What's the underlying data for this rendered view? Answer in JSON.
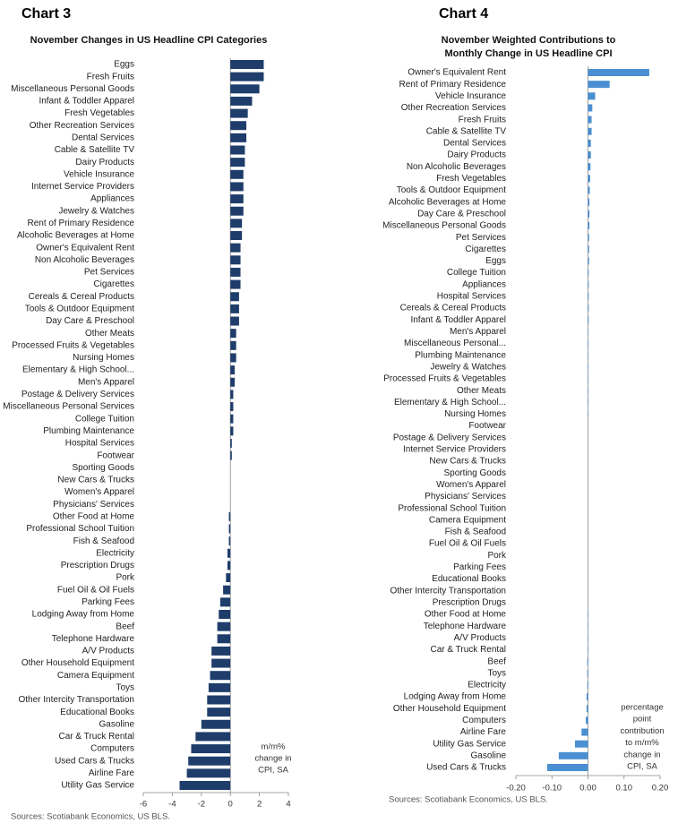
{
  "chart_data": [
    {
      "type": "bar",
      "orientation": "horizontal",
      "label": "Chart 3",
      "title": "November Changes in US Headline CPI Categories",
      "categories": [
        "Eggs",
        "Fresh Fruits",
        "Miscellaneous Personal Goods",
        "Infant & Toddler Apparel",
        "Fresh Vegetables",
        "Other Recreation Services",
        "Dental Services",
        "Cable & Satellite TV",
        "Dairy Products",
        "Vehicle Insurance",
        "Internet Service Providers",
        "Appliances",
        "Jewelry & Watches",
        "Rent of Primary Residence",
        "Alcoholic Beverages at Home",
        "Owner's Equivalent Rent",
        "Non Alcoholic Beverages",
        "Pet Services",
        "Cigarettes",
        "Cereals & Cereal Products",
        "Tools & Outdoor Equipment",
        "Day Care & Preschool",
        "Other Meats",
        "Processed Fruits & Vegetables",
        "Nursing Homes",
        "Elementary & High School...",
        "Men's Apparel",
        "Postage & Delivery Services",
        "Miscellaneous Personal Services",
        "College Tuition",
        "Plumbing Maintenance",
        "Hospital Services",
        "Footwear",
        "Sporting Goods",
        "New Cars & Trucks",
        "Women's Apparel",
        "Physicians' Services",
        "Other Food at Home",
        "Professional School Tuition",
        "Fish & Seafood",
        "Electricity",
        "Prescription Drugs",
        "Pork",
        "Fuel Oil & Oil Fuels",
        "Parking Fees",
        "Lodging Away from Home",
        "Beef",
        "Telephone Hardware",
        "A/V Products",
        "Other Household Equipment",
        "Camera Equipment",
        "Toys",
        "Other Intercity Transportation",
        "Educational Books",
        "Gasoline",
        "Car & Truck Rental",
        "Computers",
        "Used Cars & Trucks",
        "Airline Fare",
        "Utility Gas Service"
      ],
      "values": [
        2.3,
        2.3,
        2.0,
        1.5,
        1.2,
        1.1,
        1.1,
        1.0,
        1.0,
        0.9,
        0.9,
        0.9,
        0.9,
        0.8,
        0.8,
        0.7,
        0.7,
        0.7,
        0.7,
        0.6,
        0.6,
        0.6,
        0.4,
        0.4,
        0.4,
        0.3,
        0.3,
        0.2,
        0.2,
        0.2,
        0.2,
        0.1,
        0.1,
        0.0,
        0.0,
        0.0,
        0.0,
        -0.1,
        -0.1,
        -0.1,
        -0.2,
        -0.2,
        -0.3,
        -0.5,
        -0.7,
        -0.8,
        -0.9,
        -0.9,
        -1.3,
        -1.3,
        -1.4,
        -1.5,
        -1.6,
        -1.6,
        -2.0,
        -2.4,
        -2.7,
        -2.9,
        -3.0,
        -3.5
      ],
      "color": "#1f3d6b",
      "xlim": [
        -6,
        4
      ],
      "xticks": [
        -6,
        -4,
        -2,
        0,
        2,
        4
      ],
      "annotation": [
        "m/m%",
        "change in",
        "CPI, SA"
      ],
      "source": "Sources: Scotiabank Economics, US BLS."
    },
    {
      "type": "bar",
      "orientation": "horizontal",
      "label": "Chart 4",
      "title": [
        "November Weighted Contributions to",
        "Monthly Change in US Headline CPI"
      ],
      "categories": [
        "Owner's Equivalent Rent",
        "Rent of Primary Residence",
        "Vehicle Insurance",
        "Other Recreation Services",
        "Fresh Fruits",
        "Cable & Satellite TV",
        "Dental Services",
        "Dairy Products",
        "Non Alcoholic Beverages",
        "Fresh Vegetables",
        "Tools & Outdoor Equipment",
        "Alcoholic Beverages at Home",
        "Day Care & Preschool",
        "Miscellaneous Personal Goods",
        "Pet Services",
        "Cigarettes",
        "Eggs",
        "College Tuition",
        "Appliances",
        "Hospital Services",
        "Cereals & Cereal Products",
        "Infant & Toddler Apparel",
        "Men's Apparel",
        "Miscellaneous Personal...",
        "Plumbing Maintenance",
        "Jewelry & Watches",
        "Processed Fruits & Vegetables",
        "Other Meats",
        "Elementary & High School...",
        "Nursing Homes",
        "Footwear",
        "Postage & Delivery Services",
        "Internet Service Providers",
        "New Cars & Trucks",
        "Sporting Goods",
        "Women's Apparel",
        "Physicians' Services",
        "Professional School Tuition",
        "Camera Equipment",
        "Fish & Seafood",
        "Fuel Oil & Oil Fuels",
        "Pork",
        "Parking Fees",
        "Educational Books",
        "Other Intercity Transportation",
        "Prescription Drugs",
        "Other Food at Home",
        "Telephone Hardware",
        "A/V Products",
        "Car & Truck Rental",
        "Beef",
        "Toys",
        "Electricity",
        "Lodging Away from Home",
        "Other Household Equipment",
        "Computers",
        "Airline Fare",
        "Utility Gas Service",
        "Gasoline",
        "Used Cars & Trucks"
      ],
      "values": [
        0.17,
        0.06,
        0.02,
        0.012,
        0.01,
        0.01,
        0.008,
        0.008,
        0.007,
        0.006,
        0.005,
        0.004,
        0.004,
        0.004,
        0.003,
        0.003,
        0.003,
        0.002,
        0.002,
        0.002,
        0.002,
        0.002,
        0.001,
        0.001,
        0.001,
        0.001,
        0.001,
        0.001,
        0.001,
        0.001,
        0,
        0,
        0,
        0,
        0,
        0,
        0,
        0,
        0,
        0,
        0,
        0,
        0,
        0,
        0,
        0,
        -0.001,
        -0.001,
        -0.001,
        -0.001,
        -0.002,
        -0.002,
        -0.002,
        -0.004,
        -0.004,
        -0.006,
        -0.018,
        -0.036,
        -0.081,
        -0.113
      ],
      "color": "#4a8fd2",
      "xlim": [
        -0.2,
        0.2
      ],
      "xticks": [
        {
          "value": -0.2,
          "label": "-0.20"
        },
        {
          "value": -0.1,
          "label": "-0.10"
        },
        {
          "value": 0,
          "label": "0.00"
        },
        {
          "value": 0.1,
          "label": "0.10"
        },
        {
          "value": 0.2,
          "label": "0.20"
        }
      ],
      "annotation": [
        "percentage",
        "point",
        "contribution",
        "to m/m%",
        "change in",
        "CPI, SA"
      ],
      "source": "Sources: Scotiabank Economics, US BLS."
    }
  ]
}
